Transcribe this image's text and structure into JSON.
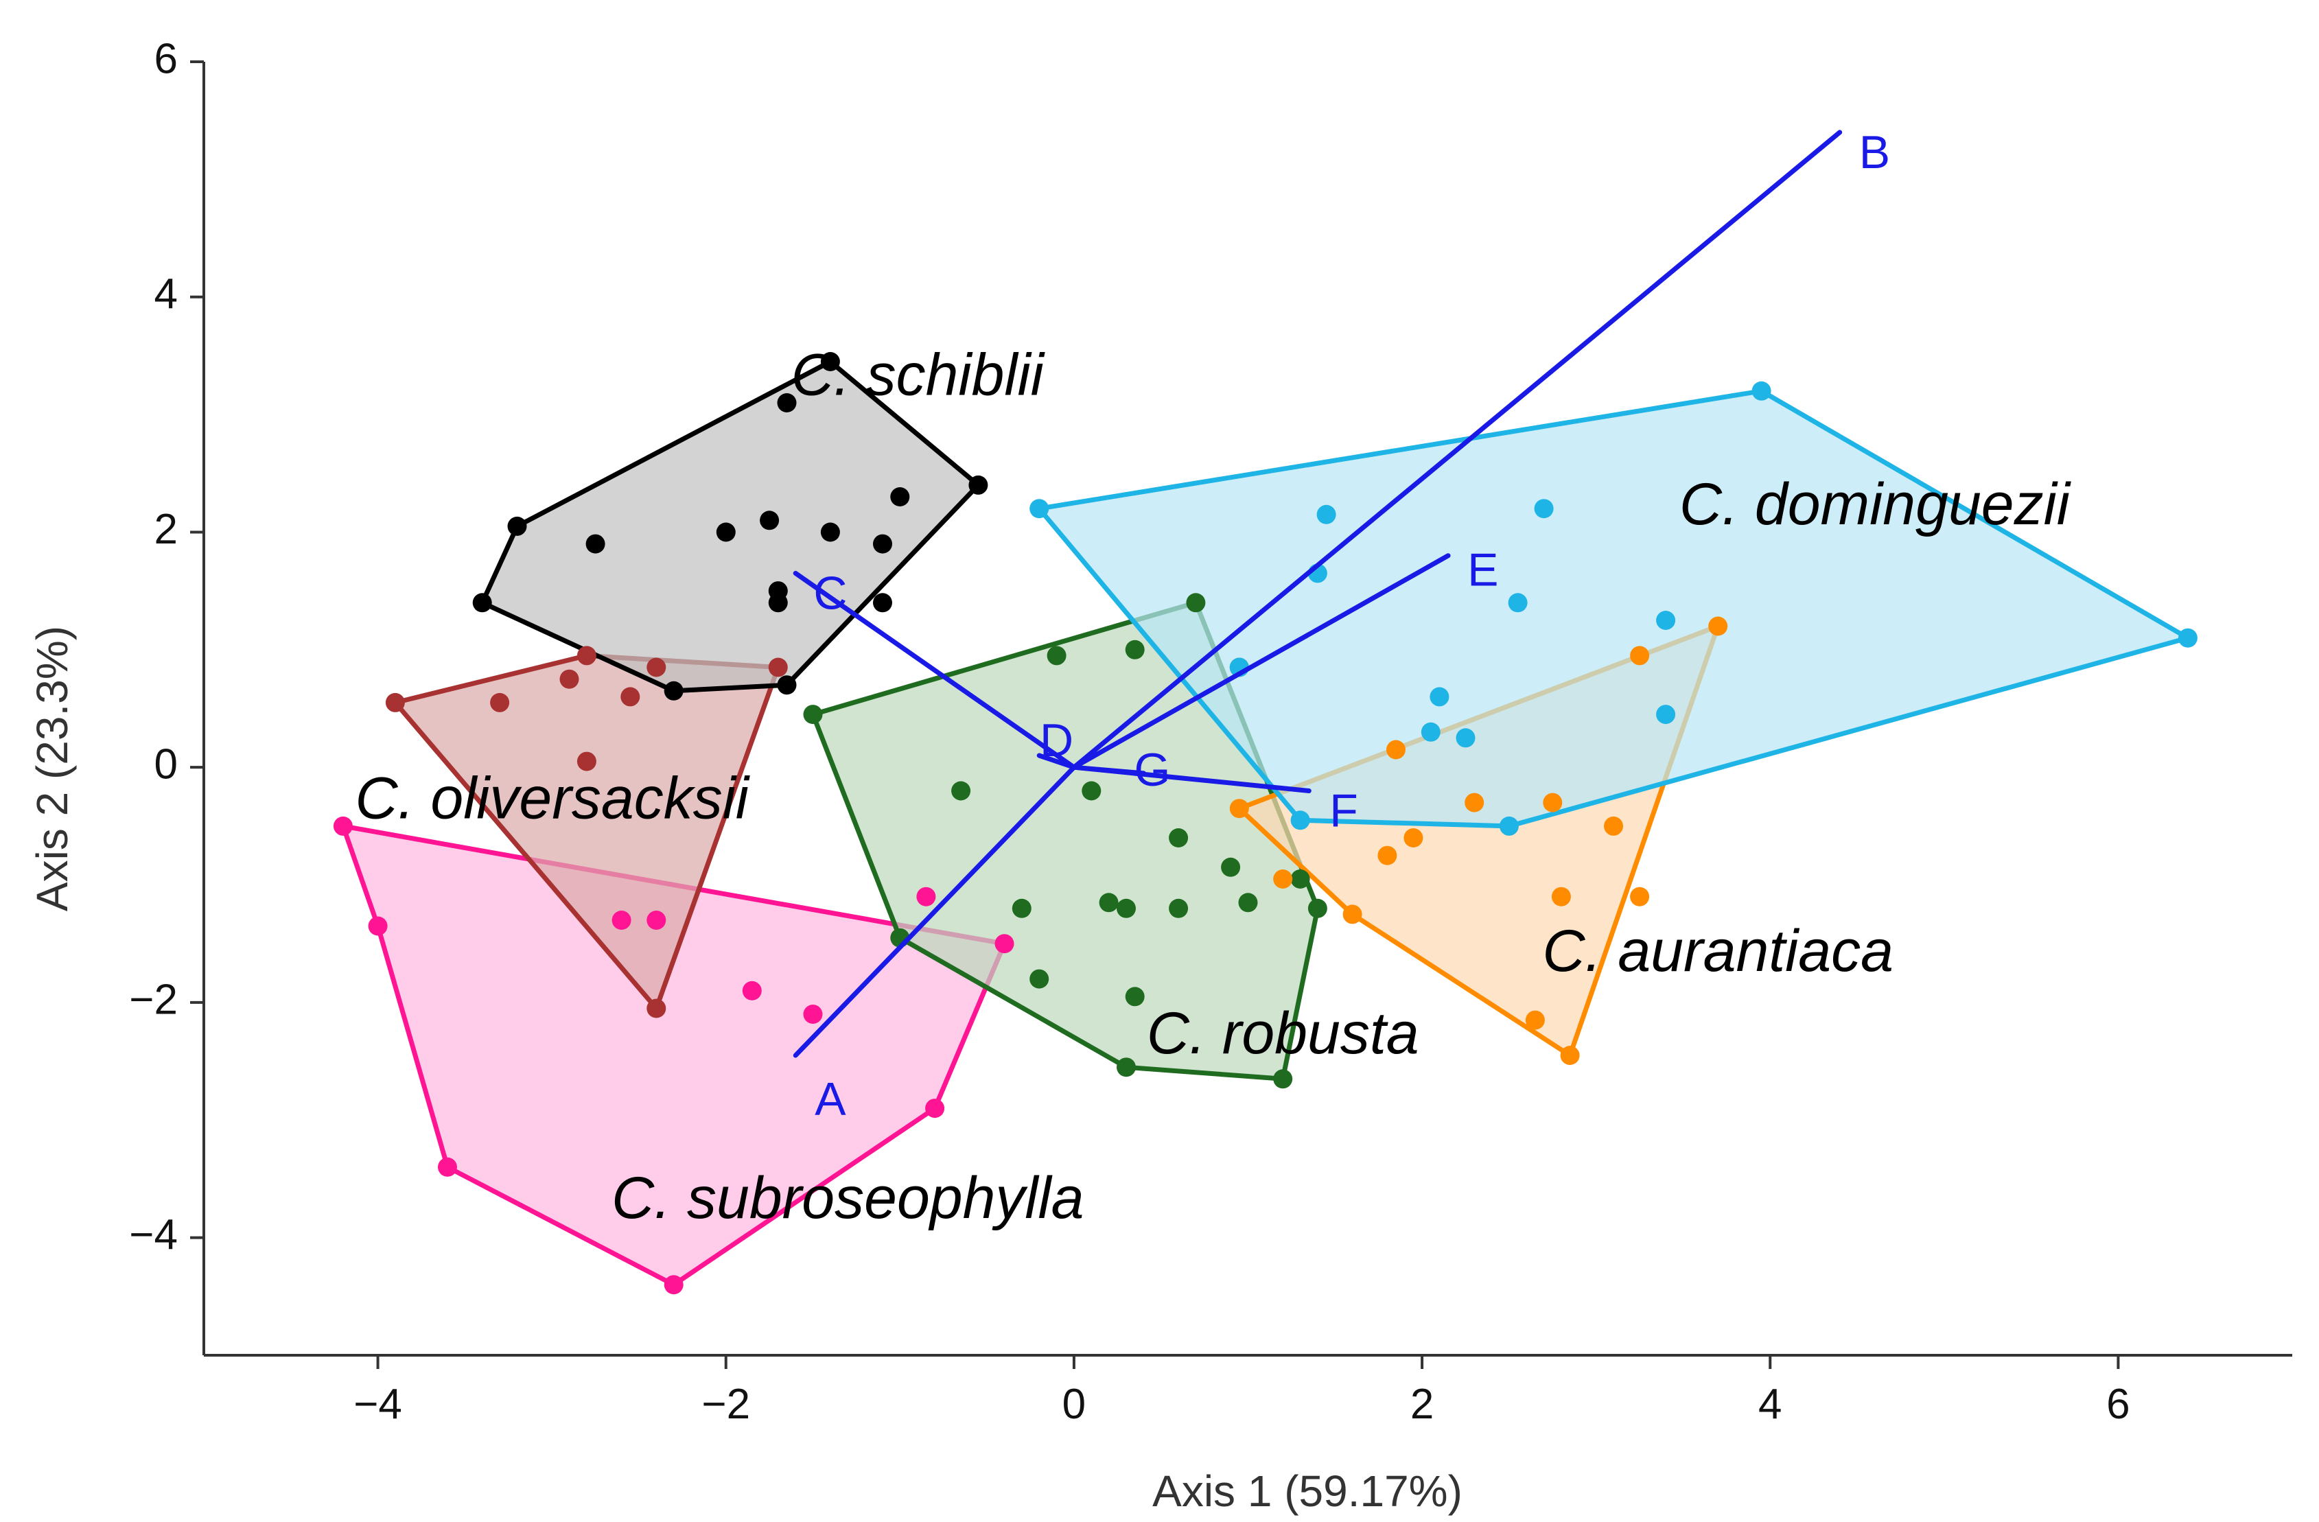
{
  "chart_data": {
    "type": "scatter",
    "xlabel": "Axis 1 (59.17%)",
    "ylabel": "Axis 2 (23.3%)",
    "xlim": [
      -5,
      7
    ],
    "ylim": [
      -5,
      6
    ],
    "xticks": [
      -4,
      -2,
      0,
      2,
      4,
      6
    ],
    "yticks": [
      -4,
      -2,
      0,
      2,
      4,
      6
    ],
    "xtick_labels": [
      "−4",
      "−2",
      "0",
      "2",
      "4",
      "6"
    ],
    "ytick_labels": [
      "−4",
      "−2",
      "0",
      "2",
      "4",
      "6"
    ],
    "groups": [
      {
        "name": "C. subroseophylla",
        "color": "#ff1493",
        "fill": "#ffb8e0",
        "label_at": [
          -1.3,
          -3.7
        ],
        "hull": [
          [
            -4.2,
            -0.5
          ],
          [
            -0.4,
            -1.5
          ],
          [
            -0.8,
            -2.9
          ],
          [
            -2.3,
            -4.4
          ],
          [
            -3.6,
            -3.4
          ],
          [
            -4.0,
            -1.35
          ]
        ],
        "points": [
          [
            -4.2,
            -0.5
          ],
          [
            -4.0,
            -1.35
          ],
          [
            -3.6,
            -3.4
          ],
          [
            -2.3,
            -4.4
          ],
          [
            -0.8,
            -2.9
          ],
          [
            -0.4,
            -1.5
          ],
          [
            -0.85,
            -1.1
          ],
          [
            -1.85,
            -1.9
          ],
          [
            -1.5,
            -2.1
          ],
          [
            -2.6,
            -1.3
          ],
          [
            -2.4,
            -1.3
          ]
        ]
      },
      {
        "name": "C. oliversacksii",
        "color": "#a83232",
        "fill": "#dca9a9",
        "label_at": [
          -3.0,
          -0.3
        ],
        "hull": [
          [
            -3.9,
            0.55
          ],
          [
            -2.8,
            0.95
          ],
          [
            -1.7,
            0.85
          ],
          [
            -2.4,
            -2.05
          ]
        ],
        "points": [
          [
            -3.9,
            0.55
          ],
          [
            -2.8,
            0.95
          ],
          [
            -1.7,
            0.85
          ],
          [
            -2.4,
            -2.05
          ],
          [
            -3.3,
            0.55
          ],
          [
            -2.9,
            0.75
          ],
          [
            -2.55,
            0.6
          ],
          [
            -2.8,
            0.05
          ],
          [
            -2.4,
            0.85
          ]
        ]
      },
      {
        "name": "C. schiblii",
        "color": "#000000",
        "fill": "#c0c0c0",
        "label_at": [
          -0.9,
          3.3
        ],
        "hull": [
          [
            -3.4,
            1.4
          ],
          [
            -3.2,
            2.05
          ],
          [
            -1.4,
            3.45
          ],
          [
            -0.55,
            2.4
          ],
          [
            -1.65,
            0.7
          ],
          [
            -2.3,
            0.65
          ]
        ],
        "points": [
          [
            -3.4,
            1.4
          ],
          [
            -3.2,
            2.05
          ],
          [
            -1.4,
            3.45
          ],
          [
            -0.55,
            2.4
          ],
          [
            -1.65,
            0.7
          ],
          [
            -2.3,
            0.65
          ],
          [
            -1.65,
            3.1
          ],
          [
            -2.75,
            1.9
          ],
          [
            -2.0,
            2.0
          ],
          [
            -1.75,
            2.1
          ],
          [
            -1.4,
            2.0
          ],
          [
            -1.1,
            1.9
          ],
          [
            -1.0,
            2.3
          ],
          [
            -1.7,
            1.5
          ],
          [
            -1.7,
            1.4
          ],
          [
            -1.1,
            1.4
          ]
        ]
      },
      {
        "name": "C. robusta",
        "color": "#1f6b1f",
        "fill": "#bcd9bc",
        "label_at": [
          1.2,
          -2.3
        ],
        "hull": [
          [
            -1.5,
            0.45
          ],
          [
            0.7,
            1.4
          ],
          [
            1.4,
            -1.2
          ],
          [
            1.2,
            -2.65
          ],
          [
            0.3,
            -2.55
          ],
          [
            -1.0,
            -1.45
          ]
        ],
        "points": [
          [
            -1.5,
            0.45
          ],
          [
            0.7,
            1.4
          ],
          [
            1.4,
            -1.2
          ],
          [
            1.2,
            -2.65
          ],
          [
            0.3,
            -2.55
          ],
          [
            -1.0,
            -1.45
          ],
          [
            -0.1,
            0.95
          ],
          [
            0.35,
            1.0
          ],
          [
            -0.65,
            -0.2
          ],
          [
            0.1,
            -0.2
          ],
          [
            0.6,
            -0.6
          ],
          [
            0.9,
            -0.85
          ],
          [
            0.2,
            -1.15
          ],
          [
            0.3,
            -1.2
          ],
          [
            -0.3,
            -1.2
          ],
          [
            0.6,
            -1.2
          ],
          [
            1.0,
            -1.15
          ],
          [
            1.3,
            -0.95
          ],
          [
            -0.2,
            -1.8
          ],
          [
            0.35,
            -1.95
          ],
          [
            0.95,
            0.85
          ]
        ]
      },
      {
        "name": "C. aurantiaca",
        "color": "#ff8c00",
        "fill": "#fdd8b0",
        "label_at": [
          3.7,
          -1.6
        ],
        "hull": [
          [
            0.95,
            -0.35
          ],
          [
            3.7,
            1.2
          ],
          [
            2.85,
            -2.45
          ],
          [
            1.6,
            -1.25
          ]
        ],
        "points": [
          [
            0.95,
            -0.35
          ],
          [
            3.7,
            1.2
          ],
          [
            2.85,
            -2.45
          ],
          [
            1.6,
            -1.25
          ],
          [
            1.2,
            -0.95
          ],
          [
            1.85,
            0.15
          ],
          [
            1.8,
            -0.75
          ],
          [
            1.95,
            -0.6
          ],
          [
            2.3,
            -0.3
          ],
          [
            2.75,
            -0.3
          ],
          [
            3.25,
            0.95
          ],
          [
            3.25,
            -1.1
          ],
          [
            3.1,
            -0.5
          ],
          [
            2.8,
            -1.1
          ],
          [
            2.65,
            -2.15
          ]
        ]
      },
      {
        "name": "C. dominguezii",
        "color": "#1fb4e6",
        "fill": "#b8e7f7",
        "label_at": [
          4.6,
          2.2
        ],
        "hull": [
          [
            -0.2,
            2.2
          ],
          [
            3.95,
            3.2
          ],
          [
            6.4,
            1.1
          ],
          [
            2.5,
            -0.5
          ],
          [
            1.3,
            -0.45
          ]
        ],
        "points": [
          [
            -0.2,
            2.2
          ],
          [
            3.95,
            3.2
          ],
          [
            6.4,
            1.1
          ],
          [
            2.5,
            -0.5
          ],
          [
            1.3,
            -0.45
          ],
          [
            1.45,
            2.15
          ],
          [
            2.7,
            2.2
          ],
          [
            1.4,
            1.65
          ],
          [
            2.55,
            1.4
          ],
          [
            3.4,
            1.25
          ],
          [
            0.95,
            0.85
          ],
          [
            2.1,
            0.6
          ],
          [
            2.05,
            0.3
          ],
          [
            2.25,
            0.25
          ],
          [
            3.4,
            0.45
          ]
        ]
      }
    ],
    "vectors": {
      "color": "#1a1ae6",
      "origin": [
        0,
        0
      ],
      "items": [
        {
          "label": "A",
          "end": [
            -1.6,
            -2.45
          ],
          "label_at": [
            -1.4,
            -2.85
          ]
        },
        {
          "label": "B",
          "end": [
            4.4,
            5.4
          ],
          "label_at": [
            4.6,
            5.2
          ]
        },
        {
          "label": "C",
          "end": [
            -1.6,
            1.65
          ],
          "label_at": [
            -1.4,
            1.45
          ]
        },
        {
          "label": "D",
          "end": [
            -0.2,
            0.1
          ],
          "label_at": [
            -0.1,
            0.2
          ]
        },
        {
          "label": "E",
          "end": [
            2.15,
            1.8
          ],
          "label_at": [
            2.35,
            1.65
          ]
        },
        {
          "label": "F",
          "end": [
            1.35,
            -0.2
          ],
          "label_at": [
            1.55,
            -0.4
          ]
        },
        {
          "label": "G",
          "end": [
            0.4,
            -0.05
          ],
          "label_at": [
            0.45,
            -0.05
          ]
        }
      ]
    }
  }
}
